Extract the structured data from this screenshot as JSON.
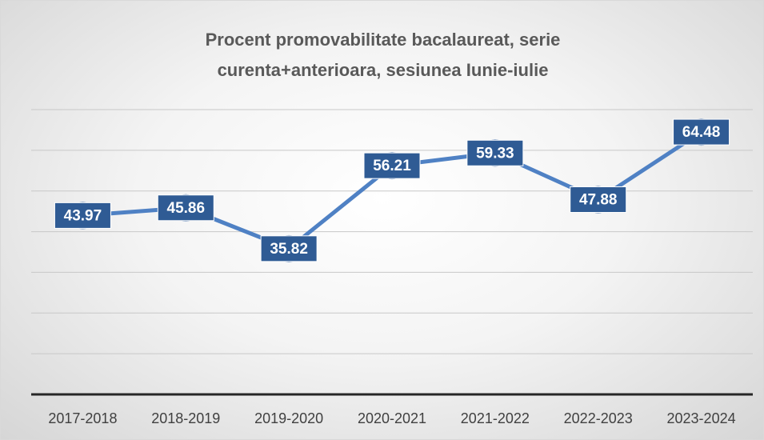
{
  "chart_data": {
    "type": "line",
    "title": "Procent promovabilitate bacalaureat, serie curenta+anterioara, sesiunea Iunie-iulie",
    "categories": [
      "2017-2018",
      "2018-2019",
      "2019-2020",
      "2020-2021",
      "2021-2022",
      "2022-2023",
      "2023-2024"
    ],
    "values": [
      43.97,
      45.86,
      35.82,
      56.21,
      59.33,
      47.88,
      64.48
    ],
    "color": "#4f81c4",
    "ylim": [
      0,
      70
    ],
    "yticks": [
      0,
      10,
      20,
      30,
      40,
      50,
      60,
      70
    ],
    "grid": true
  }
}
